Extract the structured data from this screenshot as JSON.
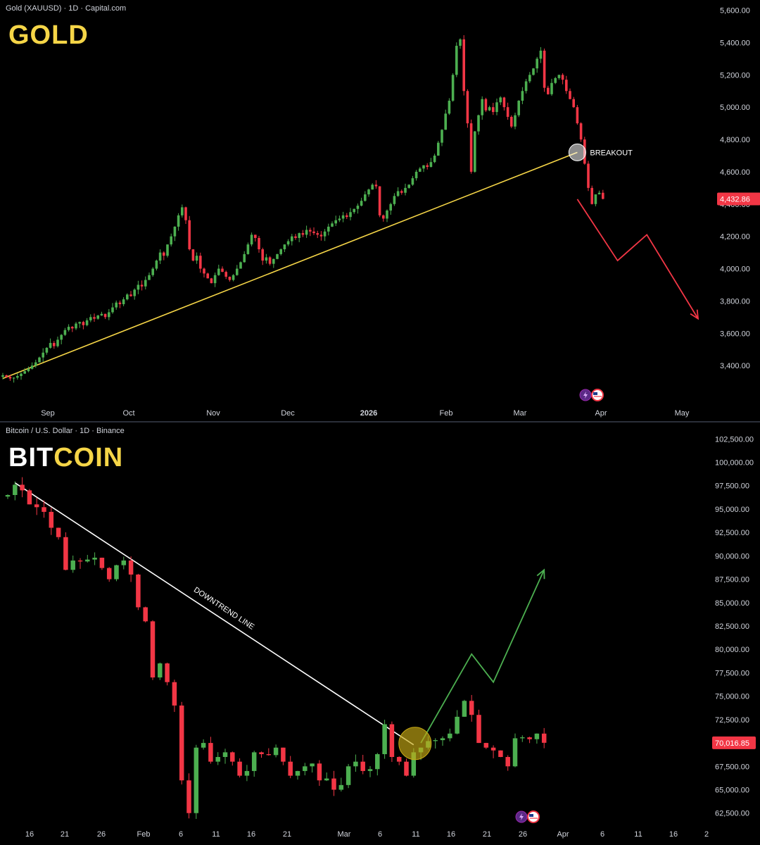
{
  "colors": {
    "up": "#26a69a",
    "up_bright": "#4caf50",
    "down": "#f23645",
    "trendline_gold": "#f5d547",
    "trendline_btc": "#ffffff",
    "projection_gold": "#f23645",
    "projection_btc": "#4caf50",
    "price_tag": "#f23645"
  },
  "chart_data": [
    {
      "type": "candlestick",
      "source_label": "Gold (XAUUSD) · 1D · Capital.com",
      "title_part1": "GOLD",
      "title_part2": "",
      "last_price_label": "4,432.86",
      "annotation": "BREAKOUT",
      "ylim": [
        3200,
        5620
      ],
      "y_ticks": [
        "5,600.00",
        "5,400.00",
        "5,200.00",
        "5,000.00",
        "4,800.00",
        "4,600.00",
        "4,400.00",
        "4,200.00",
        "4,000.00",
        "3,800.00",
        "3,600.00",
        "3,400.00"
      ],
      "x_ticks": [
        "Sep",
        "Oct",
        "Nov",
        "Dec",
        "2026",
        "Feb",
        "Mar",
        "Apr",
        "May"
      ],
      "trendline": [
        [
          0,
          3320
        ],
        [
          157,
          4720
        ]
      ],
      "projection": [
        [
          157,
          4430
        ],
        [
          168,
          4050
        ],
        [
          176,
          4210
        ],
        [
          190,
          3690
        ]
      ],
      "candles_close": [
        3340,
        3330,
        3320,
        3325,
        3335,
        3350,
        3365,
        3380,
        3400,
        3420,
        3450,
        3480,
        3510,
        3540,
        3520,
        3560,
        3590,
        3620,
        3640,
        3630,
        3660,
        3670,
        3650,
        3680,
        3700,
        3690,
        3710,
        3720,
        3700,
        3730,
        3760,
        3790,
        3780,
        3810,
        3840,
        3830,
        3870,
        3900,
        3890,
        3930,
        3960,
        4000,
        4050,
        4100,
        4080,
        4150,
        4200,
        4260,
        4330,
        4380,
        4300,
        4120,
        4050,
        4080,
        4000,
        3970,
        3940,
        3910,
        3960,
        4000,
        3980,
        3950,
        3930,
        3960,
        4000,
        4040,
        4090,
        4150,
        4210,
        4190,
        4120,
        4050,
        4070,
        4030,
        4060,
        4090,
        4120,
        4150,
        4170,
        4200,
        4190,
        4220,
        4210,
        4240,
        4230,
        4220,
        4210,
        4200,
        4230,
        4260,
        4280,
        4300,
        4310,
        4330,
        4320,
        4350,
        4370,
        4390,
        4420,
        4460,
        4490,
        4520,
        4510,
        4330,
        4310,
        4360,
        4400,
        4450,
        4480,
        4470,
        4500,
        4520,
        4560,
        4600,
        4620,
        4640,
        4630,
        4660,
        4700,
        4780,
        4860,
        4960,
        5040,
        5200,
        5380,
        5420,
        5100,
        4900,
        4600,
        4850,
        4950,
        5050,
        4980,
        5000,
        4970,
        5030,
        5060,
        5000,
        4940,
        4880,
        4950,
        5040,
        5100,
        5160,
        5200,
        5240,
        5300,
        5350,
        5120,
        5080,
        5150,
        5180,
        5200,
        5170,
        5100,
        5050,
        5000,
        4900,
        4800,
        4650,
        4500,
        4400,
        4460,
        4470,
        4432
      ]
    },
    {
      "type": "candlestick",
      "source_label": "Bitcoin / U.S. Dollar · 1D · Binance",
      "title_part1": "BIT",
      "title_part2": "COIN",
      "last_price_label": "70,016.85",
      "annotation": "DOWNTREND LINE",
      "ylim": [
        61500,
        103500
      ],
      "y_ticks": [
        "102,500.00",
        "100,000.00",
        "97,500.00",
        "95,000.00",
        "92,500.00",
        "90,000.00",
        "87,500.00",
        "85,000.00",
        "82,500.00",
        "80,000.00",
        "77,500.00",
        "75,000.00",
        "72,500.00",
        "70,000.00",
        "67,500.00",
        "65,000.00",
        "62,500.00"
      ],
      "x_ticks": [
        "16",
        "21",
        "26",
        "Feb",
        "6",
        "11",
        "16",
        "21",
        "Mar",
        "6",
        "11",
        "16",
        "21",
        "26",
        "Apr",
        "6",
        "11",
        "16",
        "2"
      ],
      "trendline": [
        [
          1,
          97800
        ],
        [
          56,
          69800
        ]
      ],
      "projection": [
        [
          57,
          70000
        ],
        [
          64,
          79500
        ],
        [
          67,
          76500
        ],
        [
          74,
          88500
        ]
      ],
      "candles_close": [
        96500,
        97600,
        97000,
        95500,
        95200,
        94700,
        93000,
        92000,
        88500,
        89500,
        89400,
        89600,
        89800,
        88700,
        87500,
        89000,
        89500,
        88000,
        84500,
        83000,
        77000,
        78500,
        76500,
        74000,
        66000,
        62500,
        69500,
        70000,
        68000,
        68500,
        69000,
        68000,
        66500,
        67000,
        69000,
        68800,
        68700,
        69500,
        68000,
        66500,
        67000,
        67500,
        67800,
        66000,
        66200,
        65000,
        65500,
        67500,
        68000,
        67000,
        67200,
        68800,
        72000,
        68500,
        68000,
        66500,
        69000,
        69500,
        70200,
        70300,
        70500,
        71000,
        72800,
        74500,
        73000,
        70000,
        69500,
        69200,
        68500,
        67500,
        70500,
        70600,
        70400,
        71000,
        70016
      ]
    }
  ]
}
